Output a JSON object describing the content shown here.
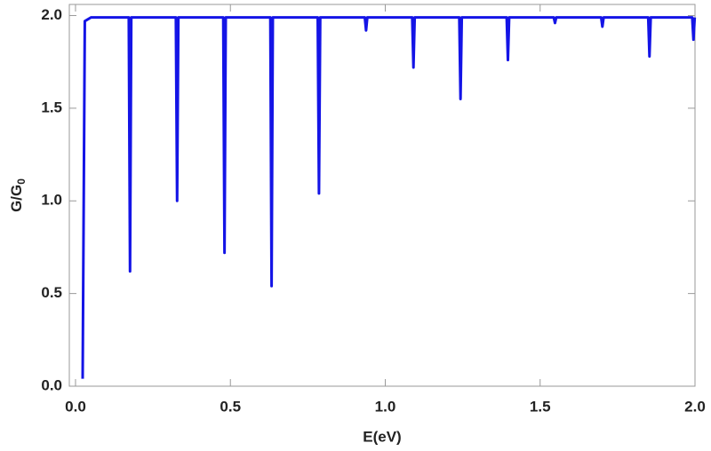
{
  "chart_data": {
    "type": "line",
    "xlabel": "E(eV)",
    "ylabel": {
      "text": "G/G",
      "subscript": "0"
    },
    "color": "#1414e6",
    "x": [
      0.023,
      0.03,
      0.05,
      0.172,
      0.176,
      0.18,
      0.324,
      0.328,
      0.332,
      0.477,
      0.481,
      0.485,
      0.629,
      0.633,
      0.637,
      0.782,
      0.786,
      0.79,
      0.934,
      0.938,
      0.942,
      1.087,
      1.091,
      1.095,
      1.239,
      1.243,
      1.247,
      1.392,
      1.396,
      1.4,
      1.544,
      1.548,
      1.552,
      1.697,
      1.701,
      1.705,
      1.849,
      1.853,
      1.857,
      1.991,
      1.995,
      1.999
    ],
    "values": [
      0.04,
      1.97,
      1.99,
      1.99,
      0.62,
      1.99,
      1.99,
      1.0,
      1.99,
      1.99,
      0.72,
      1.99,
      1.99,
      0.54,
      1.99,
      1.99,
      1.04,
      1.99,
      1.99,
      1.92,
      1.99,
      1.99,
      1.72,
      1.99,
      1.99,
      1.55,
      1.99,
      1.99,
      1.76,
      1.99,
      1.99,
      1.96,
      1.99,
      1.99,
      1.94,
      1.99,
      1.99,
      1.78,
      1.99,
      1.99,
      1.87,
      1.99
    ],
    "xlim": [
      -0.02,
      2.0
    ],
    "ylim": [
      0,
      2.06
    ],
    "xticks": [
      {
        "value": 0,
        "label": "0.0"
      },
      0.5,
      {
        "value": 1,
        "label": "1.0"
      },
      1.5,
      {
        "value": 2,
        "label": "2.0"
      }
    ],
    "yticks": [
      {
        "value": 0,
        "label": "0.0"
      },
      0.5,
      {
        "value": 1,
        "label": "1.0"
      },
      1.5,
      {
        "value": 2,
        "label": "2.0"
      }
    ],
    "grid": false
  }
}
